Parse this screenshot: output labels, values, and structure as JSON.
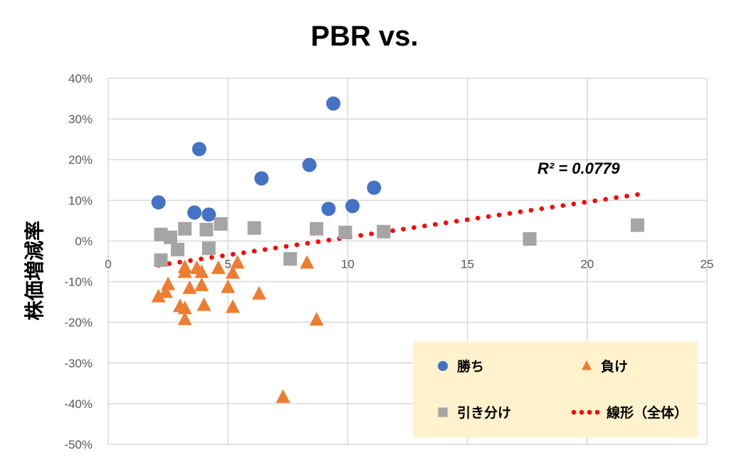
{
  "chart_data": {
    "type": "scatter",
    "title": "PBR vs.",
    "xlabel": "",
    "ylabel": "株価増減率",
    "xlim": [
      0,
      25
    ],
    "ylim": [
      -50,
      40
    ],
    "x_ticks": [
      "0",
      "5",
      "10",
      "15",
      "20",
      "25"
    ],
    "x_tick_values": [
      0,
      5,
      10,
      15,
      20,
      25
    ],
    "y_ticks": [
      "40%",
      "30%",
      "20%",
      "10%",
      "0%",
      "-10%",
      "-20%",
      "-30%",
      "-40%",
      "-50%"
    ],
    "y_tick_values": [
      40,
      30,
      20,
      10,
      0,
      -10,
      -20,
      -30,
      -40,
      -50
    ],
    "grid": true,
    "legend_position": "bottom-right",
    "series": [
      {
        "name": "勝ち",
        "marker": "circle",
        "color": "#4472c4",
        "points": [
          [
            2.1,
            9.5
          ],
          [
            3.6,
            7.0
          ],
          [
            3.8,
            22.6
          ],
          [
            4.2,
            6.5
          ],
          [
            6.4,
            15.4
          ],
          [
            8.4,
            18.7
          ],
          [
            9.2,
            7.9
          ],
          [
            9.4,
            33.8
          ],
          [
            10.2,
            8.6
          ],
          [
            11.1,
            13.1
          ]
        ]
      },
      {
        "name": "負け",
        "marker": "triangle",
        "color": "#ed7d31",
        "points": [
          [
            2.1,
            -13.7
          ],
          [
            2.4,
            -12.6
          ],
          [
            2.5,
            -10.7
          ],
          [
            3.0,
            -16.1
          ],
          [
            3.2,
            -6.5
          ],
          [
            3.2,
            -7.7
          ],
          [
            3.2,
            -16.6
          ],
          [
            3.2,
            -19.3
          ],
          [
            3.4,
            -11.6
          ],
          [
            3.7,
            -6.7
          ],
          [
            3.9,
            -7.7
          ],
          [
            3.9,
            -10.9
          ],
          [
            4.0,
            -15.8
          ],
          [
            4.6,
            -6.7
          ],
          [
            5.0,
            -11.4
          ],
          [
            5.2,
            -7.9
          ],
          [
            5.4,
            -5.4
          ],
          [
            5.2,
            -16.3
          ],
          [
            6.3,
            -13.0
          ],
          [
            7.3,
            -38.4
          ],
          [
            8.3,
            -5.4
          ],
          [
            8.7,
            -19.4
          ]
        ]
      },
      {
        "name": "引き分け",
        "marker": "square",
        "color": "#a5a5a5",
        "points": [
          [
            2.2,
            1.6
          ],
          [
            2.6,
            0.9
          ],
          [
            2.2,
            -4.7
          ],
          [
            2.9,
            -2.1
          ],
          [
            3.2,
            3.0
          ],
          [
            4.1,
            2.8
          ],
          [
            4.2,
            -1.8
          ],
          [
            4.7,
            4.2
          ],
          [
            6.1,
            3.2
          ],
          [
            7.6,
            -4.4
          ],
          [
            8.7,
            3.0
          ],
          [
            9.9,
            2.1
          ],
          [
            11.5,
            2.3
          ],
          [
            17.6,
            0.5
          ],
          [
            22.1,
            3.9
          ]
        ]
      }
    ],
    "trendline": {
      "name": "線形（全体）",
      "type": "linear",
      "color": "#ff0000",
      "slope": 0.87,
      "intercept": -7.8,
      "x_range": [
        2.1,
        22.1
      ],
      "r2_label": "R² = 0.0779"
    },
    "legend_background": "#fff2cc"
  }
}
